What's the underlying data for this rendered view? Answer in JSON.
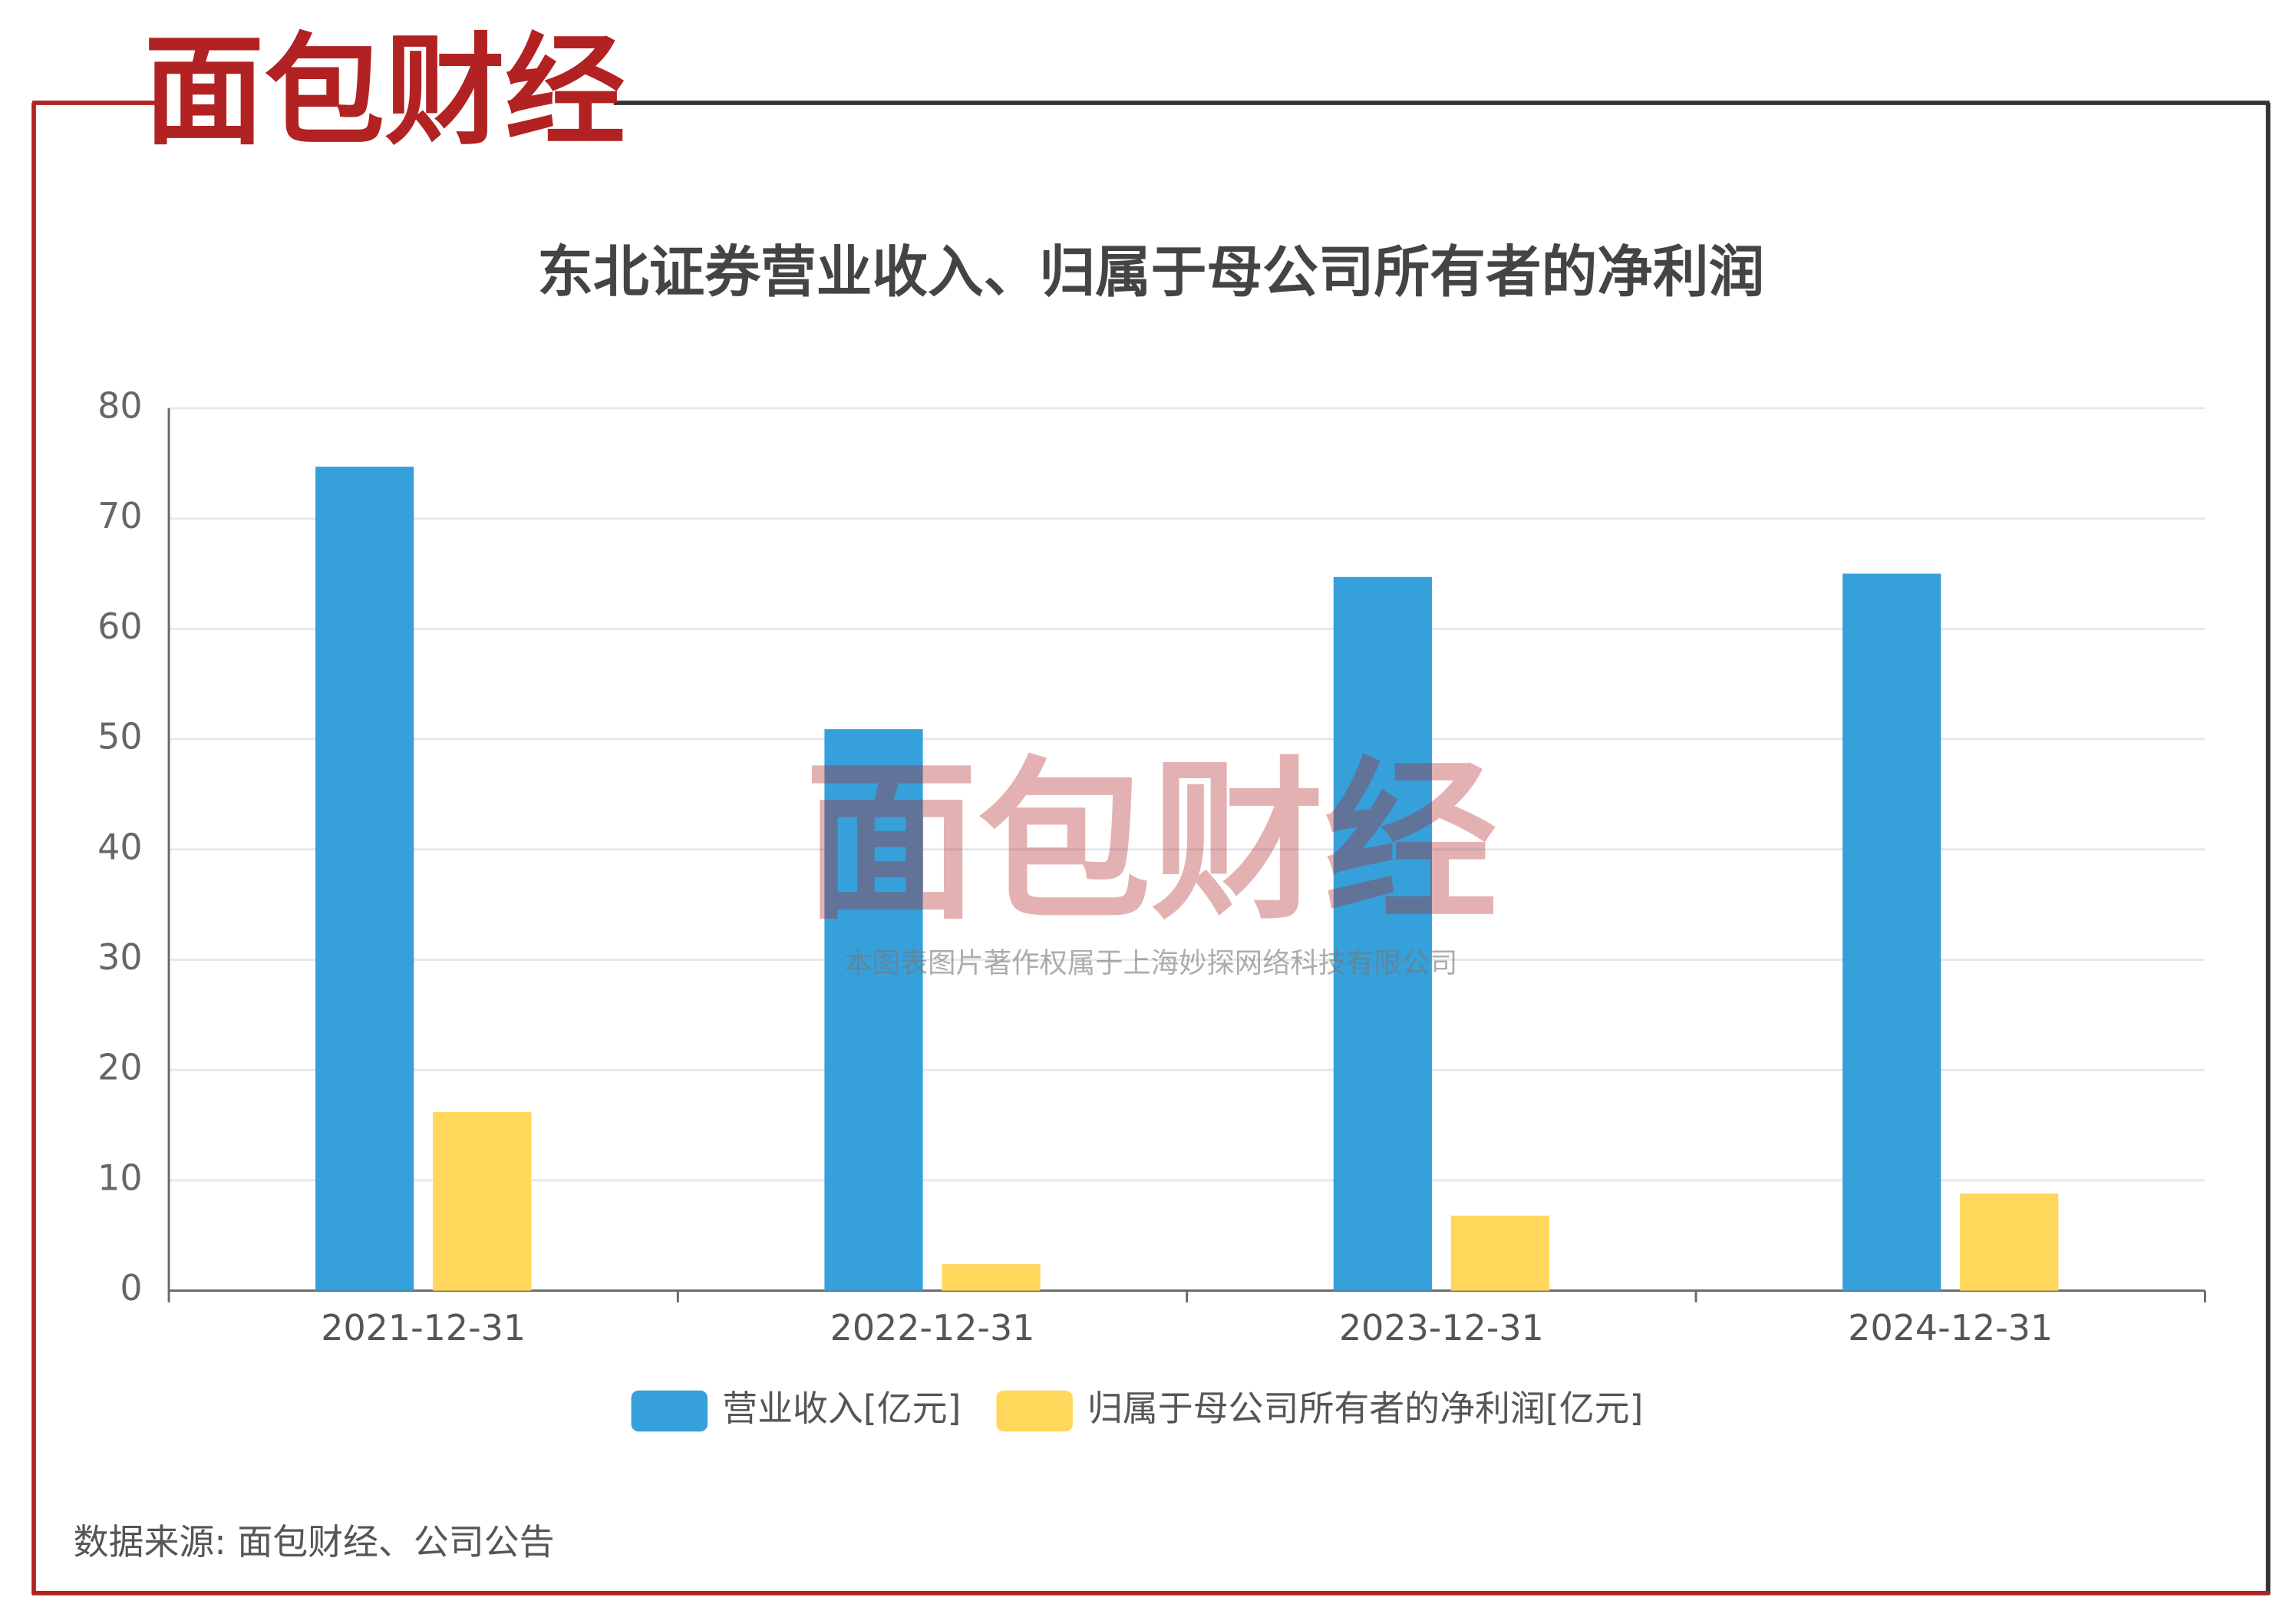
{
  "logo": "面包财经",
  "watermark": {
    "logo": "面包财经",
    "text": "本图表图片著作权属于上海妙探网络科技有限公司"
  },
  "source": "数据来源: 面包财经、公司公告",
  "chart_data": {
    "type": "bar",
    "title": "东北证券营业收入、归属于母公司所有者的净利润",
    "categories": [
      "2021-12-31",
      "2022-12-31",
      "2023-12-31",
      "2024-12-31"
    ],
    "series": [
      {
        "name": "营业收入[亿元]",
        "color": "#36a0da",
        "values": [
          74.7,
          50.9,
          64.7,
          65.0
        ]
      },
      {
        "name": "归属于母公司所有者的净利润[亿元]",
        "color": "#ffd75a",
        "values": [
          16.2,
          2.4,
          6.8,
          8.8
        ]
      }
    ],
    "ylim": [
      0,
      80
    ],
    "yticks": [
      0,
      10,
      20,
      30,
      40,
      50,
      60,
      70,
      80
    ],
    "grid": true,
    "legend": "bottom"
  }
}
